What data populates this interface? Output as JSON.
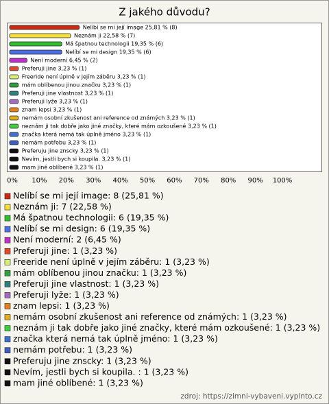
{
  "chart_data": {
    "type": "bar",
    "orientation": "horizontal",
    "title": "Z jakého důvodu?",
    "values": [
      25.81,
      22.58,
      19.35,
      19.35,
      6.45,
      3.23,
      3.23,
      3.23,
      3.23,
      3.23,
      3.23,
      3.23,
      3.23,
      3.23,
      3.23,
      3.23,
      3.23,
      3.23
    ],
    "value_labels": [
      "Nelíbí se mi její image 25,81 % (8)",
      "Neznám ji 22,58 % (7)",
      "Má špatnou technologii 19,35 % (6)",
      "Nelíbí se mi design 19,35 % (6)",
      "Není moderní 6,45 % (2)",
      "Preferuji jine 3,23 % (1)",
      "Freeride není úplně v jejím záběru 3,23 % (1)",
      "mám oblíbenou jinou značku 3,23 % (1)",
      "Preferuji jine vlastnost 3,23 % (1)",
      "Preferuji lyže 3,23 % (1)",
      "znam lepsi 3,23 % (1)",
      "nemám osobní zkušenost ani reference od známých 3,23 % (1)",
      "neznám ji tak dobře jako jiné značky, které mám ozkoušené 3,23 % (1)",
      "značka která nemá tak úplně jméno 3,23 % (1)",
      "nemám potřebu 3,23 % (1)",
      "Preferuju jine znscky 3,23 % (1)",
      "Nevím, jestli bych si koupila.  3,23 % (1)",
      "mam jiné oblíbené 3,23 % (1)"
    ],
    "legend_labels": [
      "Nelíbí se mi její image: 8 (25,81 %)",
      "Neznám ji: 7 (22,58 %)",
      "Má špatnou technologii: 6 (19,35 %)",
      "Nelíbí se mi design: 6 (19,35 %)",
      "Není moderní: 2 (6,45 %)",
      "Preferuji jine: 1 (3,23 %)",
      "Freeride není úplně v jejím záběru: 1 (3,23 %)",
      "mám oblíbenou jinou značku: 1 (3,23 %)",
      "Preferuji jine vlastnost: 1 (3,23 %)",
      "Preferuji lyže: 1 (3,23 %)",
      "znam lepsi: 1 (3,23 %)",
      "nemám osobní zkušenost ani reference od známých: 1 (3,23 %)",
      "neznám ji tak dobře jako jiné značky, které mám ozkoušené: 1 (3,23 %)",
      "značka která nemá tak úplně jméno: 1 (3,23 %)",
      "nemám potřebu: 1 (3,23 %)",
      "Preferuju jine znscky: 1 (3,23 %)",
      "Nevím, jestli bych si koupila. : 1 (3,23 %)",
      "mam jiné oblíbené: 1 (3,23 %)"
    ],
    "colors": [
      "#cc2a10",
      "#f6e13a",
      "#2fbf2f",
      "#4f6fe6",
      "#c02fc9",
      "#e04a2a",
      "#d8ef7a",
      "#2f9f3f",
      "#2f7f7f",
      "#a56bc2",
      "#e67f1f",
      "#e0b020",
      "#3fcf3f",
      "#3f6fd0",
      "#3f5fbf",
      "#111111",
      "#111111",
      "#111111"
    ],
    "xlim": [
      0,
      100
    ],
    "xticks": [
      {
        "value": 0,
        "label": "0%"
      },
      {
        "value": 10,
        "label": "10%"
      },
      {
        "value": 20,
        "label": "20%"
      },
      {
        "value": 30,
        "label": "30%"
      },
      {
        "value": 40,
        "label": "40%"
      },
      {
        "value": 50,
        "label": "50%"
      },
      {
        "value": 60,
        "label": "60%"
      },
      {
        "value": 70,
        "label": "70%"
      },
      {
        "value": 80,
        "label": "80%"
      },
      {
        "value": 90,
        "label": "90%"
      },
      {
        "value": 100,
        "label": "100%"
      }
    ],
    "source": "zdroj: https://zimni-vybaveni.vyplnto.cz"
  }
}
